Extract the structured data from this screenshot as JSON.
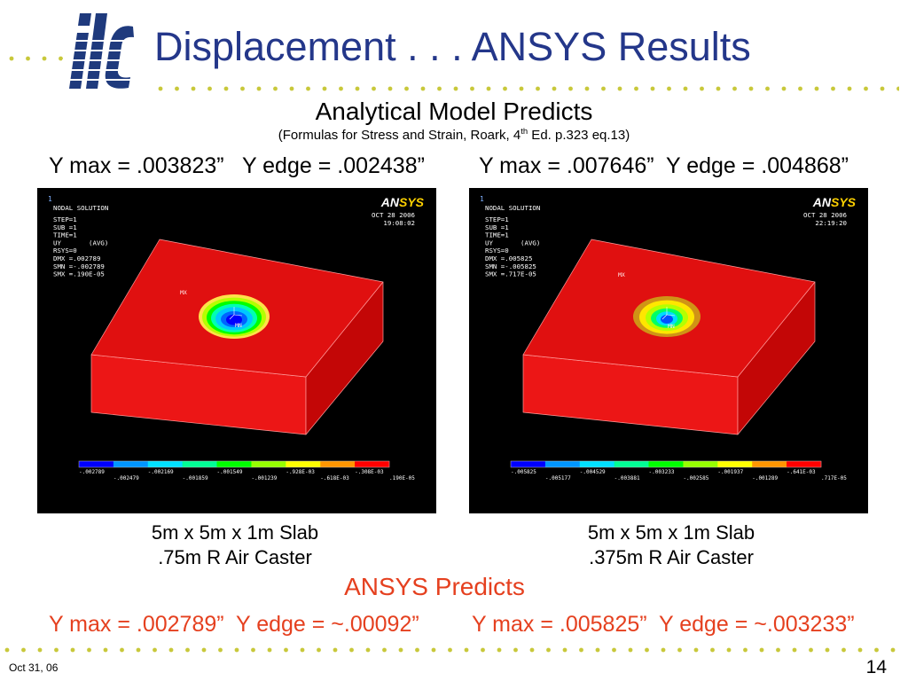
{
  "colors": {
    "title": "#24378a",
    "text": "#000000",
    "ansys_predicts": "#e5401f",
    "divider_dots": "#c8c83a",
    "logo_blue": "#1f3a7d",
    "plot_background": "#000000",
    "ansys_logo_yellow": "#ffd200"
  },
  "logo": "ilc",
  "title": "Displacement . . . ANSYS Results",
  "analytical": {
    "heading": "Analytical Model Predicts",
    "reference": {
      "before": "(Formulas for Stress and Strain, Roark, 4",
      "superscript": "th",
      "after": " Ed. p.323 eq.13)"
    },
    "results": [
      "Y max = .003823”   Y edge = .002438”",
      "Y max = .007646”  Y edge = .004868”"
    ]
  },
  "legend_colors": [
    "#0000ff",
    "#0096ff",
    "#00e1ff",
    "#00ff96",
    "#00ff00",
    "#96ff00",
    "#ffff00",
    "#ff9600",
    "#ff0000"
  ],
  "plots": [
    {
      "window_number": "1",
      "header": "NODAL SOLUTION",
      "info": [
        "STEP=1",
        "SUB =1",
        "TIME=1",
        "UY       (AVG)",
        "RSYS=0",
        "DMX =.002789",
        "SMN =-.002789",
        "SMX =.190E-05"
      ],
      "logo": {
        "an": "AN",
        "sys": "SYS"
      },
      "date": "OCT 28 2006",
      "time": "19:08:02",
      "max_label": "MX",
      "min_label": "MN",
      "contour_rings": [
        "#ffe14a",
        "#b4ff00",
        "#00ff00",
        "#00ffb4",
        "#00c8ff",
        "#0064ff",
        "#0000ff"
      ],
      "legend_labels": [
        "-.002789",
        "-.002479",
        "-.002169",
        "-.001859",
        "-.001549",
        "-.001239",
        "-.928E-03",
        "-.618E-03",
        "-.308E-03",
        ".190E-05"
      ]
    },
    {
      "window_number": "1",
      "header": "NODAL SOLUTION",
      "info": [
        "STEP=1",
        "SUB =1",
        "TIME=1",
        "UY       (AVG)",
        "RSYS=0",
        "DMX =.005825",
        "SMN =-.005825",
        "SMX =.717E-05"
      ],
      "logo": {
        "an": "AN",
        "sys": "SYS"
      },
      "date": "OCT 28 2006",
      "time": "22:19:20",
      "max_label": "MX",
      "min_label": "MN",
      "contour_rings": [
        "#cf9416",
        "#ffe600",
        "#b4ff00",
        "#00ff64",
        "#00dcff",
        "#0050ff"
      ],
      "legend_labels": [
        "-.005825",
        "-.005177",
        "-.004529",
        "-.003881",
        "-.003233",
        "-.002585",
        "-.001937",
        "-.001289",
        "-.641E-03",
        ".717E-05"
      ]
    }
  ],
  "captions": [
    {
      "line1": "5m x 5m x 1m Slab",
      "line2": ".75m R Air Caster"
    },
    {
      "line1": "5m x 5m x 1m Slab",
      "line2": ".375m R Air Caster"
    }
  ],
  "ansys": {
    "heading": "ANSYS Predicts",
    "results": [
      "Y max = .002789”  Y edge = ~.00092”",
      "Y max = .005825”  Y edge = ~.003233”"
    ]
  },
  "footer": {
    "date": "Oct 31, 06",
    "page": "14"
  }
}
